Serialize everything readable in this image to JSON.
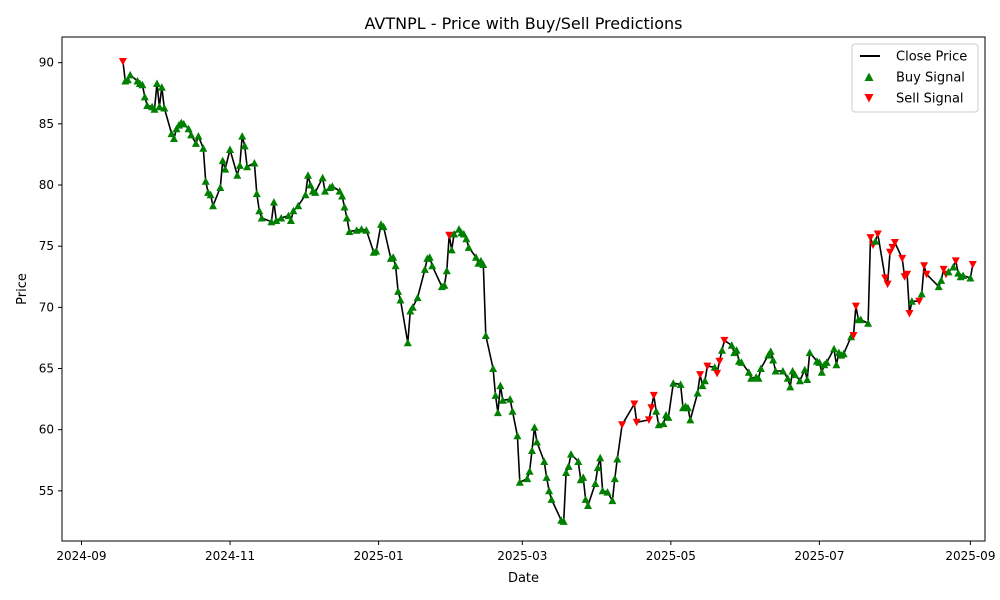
{
  "chart_data": {
    "type": "line",
    "title": "AVTNPL - Price with Buy/Sell Predictions",
    "xlabel": "Date",
    "ylabel": "Price",
    "xlim": [
      "2024-08-24",
      "2025-09-07"
    ],
    "ylim": [
      50.9,
      92.1
    ],
    "x_ticks": [
      "2024-09-01",
      "2024-11-01",
      "2025-01-01",
      "2025-03-01",
      "2025-05-01",
      "2025-07-01",
      "2025-09-01"
    ],
    "x_tick_labels": [
      "2024-09",
      "2024-11",
      "2025-01",
      "2025-03",
      "2025-05",
      "2025-07",
      "2025-09"
    ],
    "y_ticks": [
      55,
      60,
      65,
      70,
      75,
      80,
      85,
      90
    ],
    "y_tick_labels": [
      "55",
      "60",
      "65",
      "70",
      "75",
      "80",
      "85",
      "90"
    ],
    "grid": false,
    "legend": {
      "position": "top-right",
      "entries": [
        {
          "label": "Close Price",
          "kind": "line",
          "color": "#000000"
        },
        {
          "label": "Buy Signal",
          "kind": "triangle-up",
          "color": "#008000"
        },
        {
          "label": "Sell Signal",
          "kind": "triangle-down",
          "color": "#ff0000"
        }
      ]
    },
    "colors": {
      "line": "#000000",
      "buy": "#008000",
      "sell": "#ff0000"
    },
    "series": [
      {
        "name": "Close Price",
        "points": [
          [
            "2024-09-18",
            90.1
          ],
          [
            "2024-09-19",
            88.5
          ],
          [
            "2024-09-20",
            88.6
          ],
          [
            "2024-09-21",
            89.0
          ],
          [
            "2024-09-24",
            88.5
          ],
          [
            "2024-09-25",
            88.3
          ],
          [
            "2024-09-26",
            88.2
          ],
          [
            "2024-09-27",
            87.2
          ],
          [
            "2024-09-28",
            86.5
          ],
          [
            "2024-09-30",
            86.4
          ],
          [
            "2024-10-01",
            86.2
          ],
          [
            "2024-10-02",
            88.3
          ],
          [
            "2024-10-03",
            86.4
          ],
          [
            "2024-10-04",
            88.0
          ],
          [
            "2024-10-05",
            86.3
          ],
          [
            "2024-10-08",
            84.2
          ],
          [
            "2024-10-09",
            83.8
          ],
          [
            "2024-10-10",
            84.6
          ],
          [
            "2024-10-11",
            84.9
          ],
          [
            "2024-10-12",
            85.1
          ],
          [
            "2024-10-13",
            85.0
          ],
          [
            "2024-10-15",
            84.6
          ],
          [
            "2024-10-16",
            84.1
          ],
          [
            "2024-10-18",
            83.4
          ],
          [
            "2024-10-19",
            84.0
          ],
          [
            "2024-10-21",
            83.0
          ],
          [
            "2024-10-22",
            80.3
          ],
          [
            "2024-10-23",
            79.4
          ],
          [
            "2024-10-24",
            79.2
          ],
          [
            "2024-10-25",
            78.3
          ],
          [
            "2024-10-28",
            79.8
          ],
          [
            "2024-10-29",
            82.0
          ],
          [
            "2024-10-30",
            81.3
          ],
          [
            "2024-11-01",
            82.9
          ],
          [
            "2024-11-04",
            80.8
          ],
          [
            "2024-11-05",
            81.6
          ],
          [
            "2024-11-06",
            84.0
          ],
          [
            "2024-11-07",
            83.2
          ],
          [
            "2024-11-08",
            81.5
          ],
          [
            "2024-11-11",
            81.8
          ],
          [
            "2024-11-12",
            79.3
          ],
          [
            "2024-11-13",
            77.9
          ],
          [
            "2024-11-14",
            77.3
          ],
          [
            "2024-11-18",
            77.0
          ],
          [
            "2024-11-19",
            78.6
          ],
          [
            "2024-11-20",
            77.1
          ],
          [
            "2024-11-22",
            77.3
          ],
          [
            "2024-11-25",
            77.5
          ],
          [
            "2024-11-26",
            77.1
          ],
          [
            "2024-11-27",
            77.9
          ],
          [
            "2024-11-29",
            78.3
          ],
          [
            "2024-12-02",
            79.2
          ],
          [
            "2024-12-03",
            80.8
          ],
          [
            "2024-12-04",
            80.0
          ],
          [
            "2024-12-05",
            79.5
          ],
          [
            "2024-12-06",
            79.4
          ],
          [
            "2024-12-09",
            80.6
          ],
          [
            "2024-12-10",
            79.5
          ],
          [
            "2024-12-12",
            79.8
          ],
          [
            "2024-12-13",
            79.9
          ],
          [
            "2024-12-16",
            79.5
          ],
          [
            "2024-12-17",
            79.1
          ],
          [
            "2024-12-18",
            78.2
          ],
          [
            "2024-12-19",
            77.3
          ],
          [
            "2024-12-20",
            76.2
          ],
          [
            "2024-12-23",
            76.3
          ],
          [
            "2024-12-25",
            76.4
          ],
          [
            "2024-12-27",
            76.3
          ],
          [
            "2024-12-30",
            74.5
          ],
          [
            "2024-12-31",
            74.6
          ],
          [
            "2025-01-02",
            76.8
          ],
          [
            "2025-01-03",
            76.6
          ],
          [
            "2025-01-06",
            74.0
          ],
          [
            "2025-01-07",
            74.1
          ],
          [
            "2025-01-08",
            73.4
          ],
          [
            "2025-01-09",
            71.3
          ],
          [
            "2025-01-10",
            70.6
          ],
          [
            "2025-01-13",
            67.1
          ],
          [
            "2025-01-14",
            69.7
          ],
          [
            "2025-01-15",
            70.0
          ],
          [
            "2025-01-17",
            70.8
          ],
          [
            "2025-01-20",
            73.1
          ],
          [
            "2025-01-21",
            74.0
          ],
          [
            "2025-01-22",
            74.1
          ],
          [
            "2025-01-23",
            73.4
          ],
          [
            "2025-01-27",
            71.7
          ],
          [
            "2025-01-28",
            71.8
          ],
          [
            "2025-01-29",
            73.0
          ],
          [
            "2025-01-30",
            75.9
          ],
          [
            "2025-01-31",
            74.7
          ],
          [
            "2025-02-01",
            76.0
          ],
          [
            "2025-02-03",
            76.4
          ],
          [
            "2025-02-04",
            76.1
          ],
          [
            "2025-02-05",
            76.0
          ],
          [
            "2025-02-06",
            75.6
          ],
          [
            "2025-02-07",
            74.9
          ],
          [
            "2025-02-10",
            74.1
          ],
          [
            "2025-02-11",
            73.6
          ],
          [
            "2025-02-12",
            73.8
          ],
          [
            "2025-02-13",
            73.5
          ],
          [
            "2025-02-14",
            67.7
          ],
          [
            "2025-02-17",
            65.0
          ],
          [
            "2025-02-18",
            62.8
          ],
          [
            "2025-02-19",
            61.4
          ],
          [
            "2025-02-20",
            63.6
          ],
          [
            "2025-02-21",
            62.4
          ],
          [
            "2025-02-24",
            62.5
          ],
          [
            "2025-02-25",
            61.5
          ],
          [
            "2025-02-27",
            59.5
          ],
          [
            "2025-02-28",
            55.7
          ],
          [
            "2025-03-03",
            56.0
          ],
          [
            "2025-03-04",
            56.6
          ],
          [
            "2025-03-05",
            58.3
          ],
          [
            "2025-03-06",
            60.2
          ],
          [
            "2025-03-07",
            59.0
          ],
          [
            "2025-03-10",
            57.4
          ],
          [
            "2025-03-11",
            56.1
          ],
          [
            "2025-03-12",
            55.0
          ],
          [
            "2025-03-13",
            54.3
          ],
          [
            "2025-03-17",
            52.6
          ],
          [
            "2025-03-18",
            52.5
          ],
          [
            "2025-03-19",
            56.5
          ],
          [
            "2025-03-20",
            57.0
          ],
          [
            "2025-03-21",
            58.0
          ],
          [
            "2025-03-24",
            57.4
          ],
          [
            "2025-03-25",
            55.9
          ],
          [
            "2025-03-26",
            56.1
          ],
          [
            "2025-03-27",
            54.3
          ],
          [
            "2025-03-28",
            53.8
          ],
          [
            "2025-03-31",
            55.6
          ],
          [
            "2025-04-01",
            56.9
          ],
          [
            "2025-04-02",
            57.7
          ],
          [
            "2025-04-03",
            55.0
          ],
          [
            "2025-04-05",
            54.9
          ],
          [
            "2025-04-07",
            54.2
          ],
          [
            "2025-04-08",
            56.0
          ],
          [
            "2025-04-09",
            57.6
          ],
          [
            "2025-04-11",
            60.4
          ],
          [
            "2025-04-16",
            62.1
          ],
          [
            "2025-04-17",
            60.6
          ],
          [
            "2025-04-22",
            60.8
          ],
          [
            "2025-04-23",
            61.8
          ],
          [
            "2025-04-24",
            62.8
          ],
          [
            "2025-04-25",
            61.5
          ],
          [
            "2025-04-26",
            60.4
          ],
          [
            "2025-04-28",
            60.5
          ],
          [
            "2025-04-29",
            61.2
          ],
          [
            "2025-04-30",
            61.0
          ],
          [
            "2025-05-02",
            63.8
          ],
          [
            "2025-05-05",
            63.7
          ],
          [
            "2025-05-06",
            61.8
          ],
          [
            "2025-05-07",
            61.9
          ],
          [
            "2025-05-08",
            61.8
          ],
          [
            "2025-05-09",
            60.8
          ],
          [
            "2025-05-12",
            63.0
          ],
          [
            "2025-05-13",
            64.5
          ],
          [
            "2025-05-14",
            63.6
          ],
          [
            "2025-05-15",
            64.0
          ],
          [
            "2025-05-16",
            65.2
          ],
          [
            "2025-05-19",
            65.1
          ],
          [
            "2025-05-20",
            64.6
          ],
          [
            "2025-05-21",
            65.6
          ],
          [
            "2025-05-22",
            66.5
          ],
          [
            "2025-05-23",
            67.3
          ],
          [
            "2025-05-26",
            66.9
          ],
          [
            "2025-05-27",
            66.3
          ],
          [
            "2025-05-28",
            66.5
          ],
          [
            "2025-05-29",
            65.6
          ],
          [
            "2025-05-30",
            65.5
          ],
          [
            "2025-06-02",
            64.7
          ],
          [
            "2025-06-03",
            64.2
          ],
          [
            "2025-06-05",
            64.3
          ],
          [
            "2025-06-06",
            64.2
          ],
          [
            "2025-06-07",
            65.0
          ],
          [
            "2025-06-10",
            66.1
          ],
          [
            "2025-06-11",
            66.4
          ],
          [
            "2025-06-12",
            65.7
          ],
          [
            "2025-06-13",
            64.8
          ],
          [
            "2025-06-16",
            64.8
          ],
          [
            "2025-06-18",
            64.2
          ],
          [
            "2025-06-19",
            63.5
          ],
          [
            "2025-06-20",
            64.8
          ],
          [
            "2025-06-21",
            64.5
          ],
          [
            "2025-06-23",
            64.0
          ],
          [
            "2025-06-25",
            64.9
          ],
          [
            "2025-06-26",
            64.1
          ],
          [
            "2025-06-27",
            66.3
          ],
          [
            "2025-06-30",
            65.6
          ],
          [
            "2025-07-01",
            65.5
          ],
          [
            "2025-07-02",
            64.7
          ],
          [
            "2025-07-03",
            65.3
          ],
          [
            "2025-07-04",
            65.5
          ],
          [
            "2025-07-07",
            66.6
          ],
          [
            "2025-07-08",
            65.3
          ],
          [
            "2025-07-09",
            66.3
          ],
          [
            "2025-07-10",
            66.1
          ],
          [
            "2025-07-11",
            66.2
          ],
          [
            "2025-07-14",
            67.6
          ],
          [
            "2025-07-15",
            67.7
          ],
          [
            "2025-07-16",
            70.1
          ],
          [
            "2025-07-17",
            69.0
          ],
          [
            "2025-07-18",
            69.0
          ],
          [
            "2025-07-21",
            68.7
          ],
          [
            "2025-07-22",
            75.7
          ],
          [
            "2025-07-23",
            75.1
          ],
          [
            "2025-07-24",
            75.4
          ],
          [
            "2025-07-25",
            76.0
          ],
          [
            "2025-07-28",
            72.4
          ],
          [
            "2025-07-29",
            71.9
          ],
          [
            "2025-07-30",
            74.5
          ],
          [
            "2025-07-31",
            74.9
          ],
          [
            "2025-08-01",
            75.3
          ],
          [
            "2025-08-04",
            74.0
          ],
          [
            "2025-08-05",
            72.5
          ],
          [
            "2025-08-06",
            72.7
          ],
          [
            "2025-08-07",
            69.5
          ],
          [
            "2025-08-08",
            70.5
          ],
          [
            "2025-08-11",
            70.5
          ],
          [
            "2025-08-12",
            71.1
          ],
          [
            "2025-08-13",
            73.4
          ],
          [
            "2025-08-14",
            72.7
          ],
          [
            "2025-08-19",
            71.7
          ],
          [
            "2025-08-20",
            72.2
          ],
          [
            "2025-08-21",
            73.1
          ],
          [
            "2025-08-22",
            72.7
          ],
          [
            "2025-08-23",
            72.9
          ],
          [
            "2025-08-25",
            73.3
          ],
          [
            "2025-08-26",
            73.8
          ],
          [
            "2025-08-27",
            72.8
          ],
          [
            "2025-08-28",
            72.5
          ],
          [
            "2025-08-29",
            72.6
          ],
          [
            "2025-09-01",
            72.4
          ],
          [
            "2025-09-02",
            73.5
          ]
        ]
      }
    ],
    "sell_dates": [
      "2024-09-18",
      "2025-01-30",
      "2025-04-11",
      "2025-04-16",
      "2025-04-17",
      "2025-04-22",
      "2025-04-23",
      "2025-04-24",
      "2025-05-13",
      "2025-05-16",
      "2025-05-20",
      "2025-05-21",
      "2025-05-23",
      "2025-07-15",
      "2025-07-16",
      "2025-07-22",
      "2025-07-23",
      "2025-07-25",
      "2025-07-28",
      "2025-07-29",
      "2025-07-30",
      "2025-07-31",
      "2025-08-01",
      "2025-08-04",
      "2025-08-05",
      "2025-08-06",
      "2025-08-07",
      "2025-08-11",
      "2025-08-13",
      "2025-08-14",
      "2025-08-21",
      "2025-08-22",
      "2025-08-26",
      "2025-09-02"
    ]
  }
}
